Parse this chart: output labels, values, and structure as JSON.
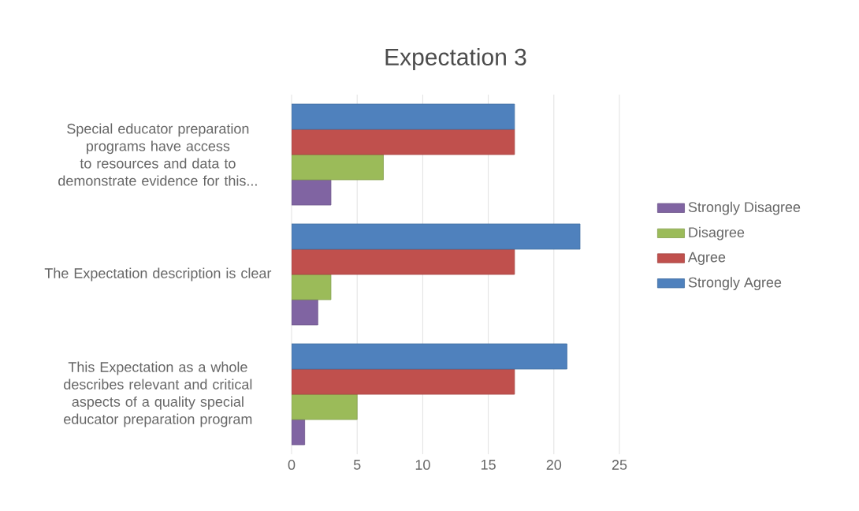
{
  "chart_data": {
    "type": "bar",
    "orientation": "horizontal",
    "title": "Expectation 3",
    "categories": [
      "Special educator preparation programs have access to resources and data to demonstrate evidence for this...",
      "The Expectation description is clear",
      "This Expectation as a whole describes relevant and critical aspects of a quality special educator preparation program"
    ],
    "series": [
      {
        "name": "Strongly Disagree",
        "color": "#8064a2",
        "values": [
          3,
          2,
          1
        ]
      },
      {
        "name": "Disagree",
        "color": "#9bbb59",
        "values": [
          7,
          3,
          5
        ]
      },
      {
        "name": "Agree",
        "color": "#c0504d",
        "values": [
          17,
          17,
          17
        ]
      },
      {
        "name": "Strongly Agree",
        "color": "#4f81bd",
        "values": [
          17,
          22,
          21
        ]
      }
    ],
    "xlim": [
      0,
      25
    ],
    "xticks": [
      0,
      5,
      10,
      15,
      20,
      25
    ],
    "grid": "x",
    "legend": "right"
  }
}
